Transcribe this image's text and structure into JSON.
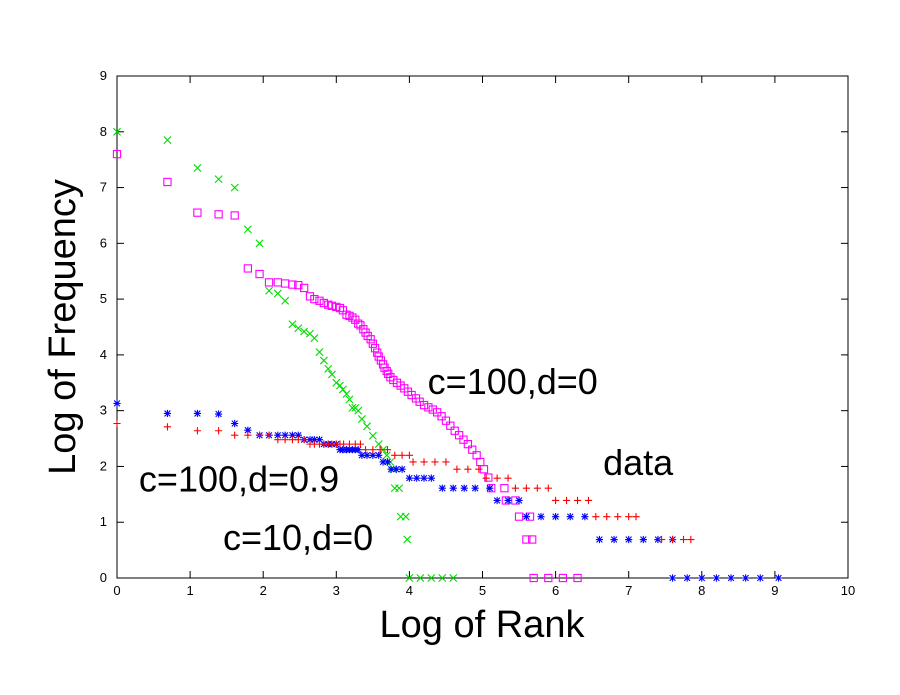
{
  "chart_data": {
    "type": "scatter",
    "xlabel": "Log of Rank",
    "ylabel": "Log of Frequency",
    "xlim": [
      0,
      10
    ],
    "ylim": [
      0,
      9
    ],
    "xticks": [
      "0",
      "1",
      "2",
      "3",
      "4",
      "5",
      "6",
      "7",
      "8",
      "9",
      "10"
    ],
    "yticks": [
      "0",
      "1",
      "2",
      "3",
      "4",
      "5",
      "6",
      "7",
      "8",
      "9"
    ],
    "grid": false,
    "annotations": [
      {
        "text": "c=100,d=0",
        "x": 4.25,
        "y": 3.3
      },
      {
        "text": "data",
        "x": 6.65,
        "y": 1.85
      },
      {
        "text": "c=100,d=0.9",
        "x": 0.3,
        "y": 1.55
      },
      {
        "text": "c=10,d=0",
        "x": 1.45,
        "y": 0.5
      }
    ],
    "series": [
      {
        "color": "#ff00ff",
        "marker": "square",
        "points": [
          [
            0,
            7.6
          ],
          [
            0.69,
            7.1
          ],
          [
            1.1,
            6.55
          ],
          [
            1.39,
            6.52
          ],
          [
            1.61,
            6.5
          ],
          [
            1.79,
            5.55
          ],
          [
            1.95,
            5.45
          ],
          [
            2.08,
            5.3
          ],
          [
            2.2,
            5.3
          ],
          [
            2.3,
            5.28
          ],
          [
            2.4,
            5.26
          ],
          [
            2.48,
            5.25
          ],
          [
            2.56,
            5.2
          ],
          [
            2.64,
            5.05
          ],
          [
            2.7,
            5.0
          ],
          [
            2.77,
            4.97
          ],
          [
            2.83,
            4.93
          ],
          [
            2.89,
            4.9
          ],
          [
            2.94,
            4.88
          ],
          [
            3.0,
            4.86
          ],
          [
            3.05,
            4.84
          ],
          [
            3.09,
            4.8
          ],
          [
            3.14,
            4.72
          ],
          [
            3.18,
            4.7
          ],
          [
            3.22,
            4.67
          ],
          [
            3.26,
            4.63
          ],
          [
            3.3,
            4.56
          ],
          [
            3.33,
            4.53
          ],
          [
            3.37,
            4.46
          ],
          [
            3.4,
            4.4
          ],
          [
            3.43,
            4.34
          ],
          [
            3.47,
            4.28
          ],
          [
            3.5,
            4.2
          ],
          [
            3.53,
            4.12
          ],
          [
            3.56,
            4.04
          ],
          [
            3.58,
            3.97
          ],
          [
            3.61,
            3.9
          ],
          [
            3.64,
            3.83
          ],
          [
            3.66,
            3.77
          ],
          [
            3.69,
            3.71
          ],
          [
            3.71,
            3.66
          ],
          [
            3.74,
            3.6
          ],
          [
            3.78,
            3.55
          ],
          [
            3.83,
            3.5
          ],
          [
            3.88,
            3.45
          ],
          [
            3.93,
            3.4
          ],
          [
            3.98,
            3.34
          ],
          [
            4.03,
            3.28
          ],
          [
            4.09,
            3.22
          ],
          [
            4.14,
            3.16
          ],
          [
            4.2,
            3.1
          ],
          [
            4.26,
            3.06
          ],
          [
            4.32,
            3.02
          ],
          [
            4.38,
            2.97
          ],
          [
            4.44,
            2.9
          ],
          [
            4.5,
            2.82
          ],
          [
            4.56,
            2.73
          ],
          [
            4.62,
            2.64
          ],
          [
            4.68,
            2.56
          ],
          [
            4.74,
            2.48
          ],
          [
            4.8,
            2.4
          ],
          [
            4.86,
            2.3
          ],
          [
            4.92,
            2.2
          ],
          [
            4.97,
            2.08
          ],
          [
            5.02,
            1.95
          ],
          [
            5.08,
            1.8
          ],
          [
            5.12,
            1.61
          ],
          [
            5.3,
            1.61
          ],
          [
            5.32,
            1.39
          ],
          [
            5.45,
            1.39
          ],
          [
            5.5,
            1.1
          ],
          [
            5.65,
            1.1
          ],
          [
            5.6,
            0.69
          ],
          [
            5.68,
            0.69
          ],
          [
            5.7,
            0
          ],
          [
            5.9,
            0
          ],
          [
            6.1,
            0
          ],
          [
            6.3,
            0
          ]
        ]
      },
      {
        "color": "#00dd00",
        "marker": "x",
        "points": [
          [
            0,
            8.0
          ],
          [
            0.69,
            7.85
          ],
          [
            1.1,
            7.35
          ],
          [
            1.39,
            7.15
          ],
          [
            1.61,
            7.0
          ],
          [
            1.79,
            6.25
          ],
          [
            1.95,
            6.0
          ],
          [
            2.08,
            5.15
          ],
          [
            2.2,
            5.1
          ],
          [
            2.3,
            4.97
          ],
          [
            2.4,
            4.55
          ],
          [
            2.48,
            4.48
          ],
          [
            2.56,
            4.42
          ],
          [
            2.64,
            4.38
          ],
          [
            2.7,
            4.3
          ],
          [
            2.77,
            4.05
          ],
          [
            2.83,
            3.9
          ],
          [
            2.89,
            3.75
          ],
          [
            2.94,
            3.65
          ],
          [
            3.0,
            3.5
          ],
          [
            3.05,
            3.45
          ],
          [
            3.09,
            3.38
          ],
          [
            3.14,
            3.3
          ],
          [
            3.18,
            3.2
          ],
          [
            3.22,
            3.05
          ],
          [
            3.26,
            3.05
          ],
          [
            3.3,
            3.0
          ],
          [
            3.35,
            2.85
          ],
          [
            3.42,
            2.72
          ],
          [
            3.5,
            2.55
          ],
          [
            3.58,
            2.4
          ],
          [
            3.64,
            2.3
          ],
          [
            3.69,
            2.2
          ],
          [
            3.74,
            2.08
          ],
          [
            3.78,
            1.95
          ],
          [
            3.8,
            1.61
          ],
          [
            3.86,
            1.61
          ],
          [
            3.88,
            1.1
          ],
          [
            3.95,
            1.1
          ],
          [
            3.97,
            0.69
          ],
          [
            4.0,
            0
          ],
          [
            4.15,
            0
          ],
          [
            4.3,
            0
          ],
          [
            4.45,
            0
          ],
          [
            4.6,
            0
          ]
        ]
      },
      {
        "color": "#0000ff",
        "marker": "star",
        "points": [
          [
            0,
            3.13
          ],
          [
            0.69,
            2.95
          ],
          [
            1.1,
            2.95
          ],
          [
            1.39,
            2.94
          ],
          [
            1.61,
            2.77
          ],
          [
            1.79,
            2.65
          ],
          [
            1.95,
            2.56
          ],
          [
            2.08,
            2.56
          ],
          [
            2.2,
            2.56
          ],
          [
            2.3,
            2.56
          ],
          [
            2.4,
            2.56
          ],
          [
            2.48,
            2.56
          ],
          [
            2.56,
            2.48
          ],
          [
            2.64,
            2.48
          ],
          [
            2.7,
            2.48
          ],
          [
            2.77,
            2.48
          ],
          [
            2.83,
            2.4
          ],
          [
            2.89,
            2.4
          ],
          [
            2.94,
            2.4
          ],
          [
            3.0,
            2.4
          ],
          [
            3.05,
            2.3
          ],
          [
            3.09,
            2.3
          ],
          [
            3.14,
            2.3
          ],
          [
            3.18,
            2.3
          ],
          [
            3.22,
            2.3
          ],
          [
            3.26,
            2.3
          ],
          [
            3.3,
            2.3
          ],
          [
            3.35,
            2.2
          ],
          [
            3.42,
            2.2
          ],
          [
            3.5,
            2.2
          ],
          [
            3.58,
            2.2
          ],
          [
            3.64,
            2.08
          ],
          [
            3.7,
            2.08
          ],
          [
            3.75,
            1.95
          ],
          [
            3.82,
            1.95
          ],
          [
            3.9,
            1.95
          ],
          [
            4.0,
            1.79
          ],
          [
            4.1,
            1.79
          ],
          [
            4.2,
            1.79
          ],
          [
            4.3,
            1.79
          ],
          [
            4.45,
            1.61
          ],
          [
            4.6,
            1.61
          ],
          [
            4.75,
            1.61
          ],
          [
            4.9,
            1.61
          ],
          [
            5.1,
            1.61
          ],
          [
            5.2,
            1.39
          ],
          [
            5.35,
            1.39
          ],
          [
            5.5,
            1.39
          ],
          [
            5.6,
            1.1
          ],
          [
            5.8,
            1.1
          ],
          [
            6.0,
            1.1
          ],
          [
            6.2,
            1.1
          ],
          [
            6.4,
            1.1
          ],
          [
            6.6,
            0.69
          ],
          [
            6.8,
            0.69
          ],
          [
            7.0,
            0.69
          ],
          [
            7.2,
            0.69
          ],
          [
            7.4,
            0.69
          ],
          [
            7.6,
            0.69
          ],
          [
            7.6,
            0
          ],
          [
            7.8,
            0
          ],
          [
            8.0,
            0
          ],
          [
            8.2,
            0
          ],
          [
            8.4,
            0
          ],
          [
            8.6,
            0
          ],
          [
            8.8,
            0
          ],
          [
            9.05,
            0
          ]
        ]
      },
      {
        "color": "#ff0000",
        "marker": "plus",
        "points": [
          [
            0,
            2.77
          ],
          [
            0.69,
            2.71
          ],
          [
            1.1,
            2.64
          ],
          [
            1.39,
            2.64
          ],
          [
            1.61,
            2.56
          ],
          [
            1.79,
            2.56
          ],
          [
            1.95,
            2.56
          ],
          [
            2.08,
            2.56
          ],
          [
            2.2,
            2.48
          ],
          [
            2.3,
            2.48
          ],
          [
            2.4,
            2.48
          ],
          [
            2.48,
            2.48
          ],
          [
            2.56,
            2.48
          ],
          [
            2.64,
            2.4
          ],
          [
            2.7,
            2.4
          ],
          [
            2.77,
            2.4
          ],
          [
            2.83,
            2.4
          ],
          [
            2.89,
            2.4
          ],
          [
            2.94,
            2.4
          ],
          [
            3.0,
            2.4
          ],
          [
            3.05,
            2.4
          ],
          [
            3.1,
            2.4
          ],
          [
            3.18,
            2.4
          ],
          [
            3.26,
            2.4
          ],
          [
            3.33,
            2.4
          ],
          [
            3.4,
            2.3
          ],
          [
            3.5,
            2.3
          ],
          [
            3.6,
            2.3
          ],
          [
            3.7,
            2.3
          ],
          [
            3.8,
            2.2
          ],
          [
            3.9,
            2.2
          ],
          [
            4.0,
            2.2
          ],
          [
            4.05,
            2.08
          ],
          [
            4.2,
            2.08
          ],
          [
            4.35,
            2.08
          ],
          [
            4.5,
            2.08
          ],
          [
            4.65,
            1.95
          ],
          [
            4.8,
            1.95
          ],
          [
            4.95,
            1.95
          ],
          [
            5.05,
            1.79
          ],
          [
            5.2,
            1.79
          ],
          [
            5.35,
            1.79
          ],
          [
            5.45,
            1.61
          ],
          [
            5.6,
            1.61
          ],
          [
            5.75,
            1.61
          ],
          [
            5.9,
            1.61
          ],
          [
            6.0,
            1.39
          ],
          [
            6.15,
            1.39
          ],
          [
            6.3,
            1.39
          ],
          [
            6.45,
            1.39
          ],
          [
            6.55,
            1.1
          ],
          [
            6.7,
            1.1
          ],
          [
            6.85,
            1.1
          ],
          [
            7.0,
            1.1
          ],
          [
            7.1,
            1.1
          ],
          [
            7.45,
            0.69
          ],
          [
            7.6,
            0.69
          ],
          [
            7.75,
            0.69
          ],
          [
            7.85,
            0.69
          ]
        ]
      }
    ]
  }
}
